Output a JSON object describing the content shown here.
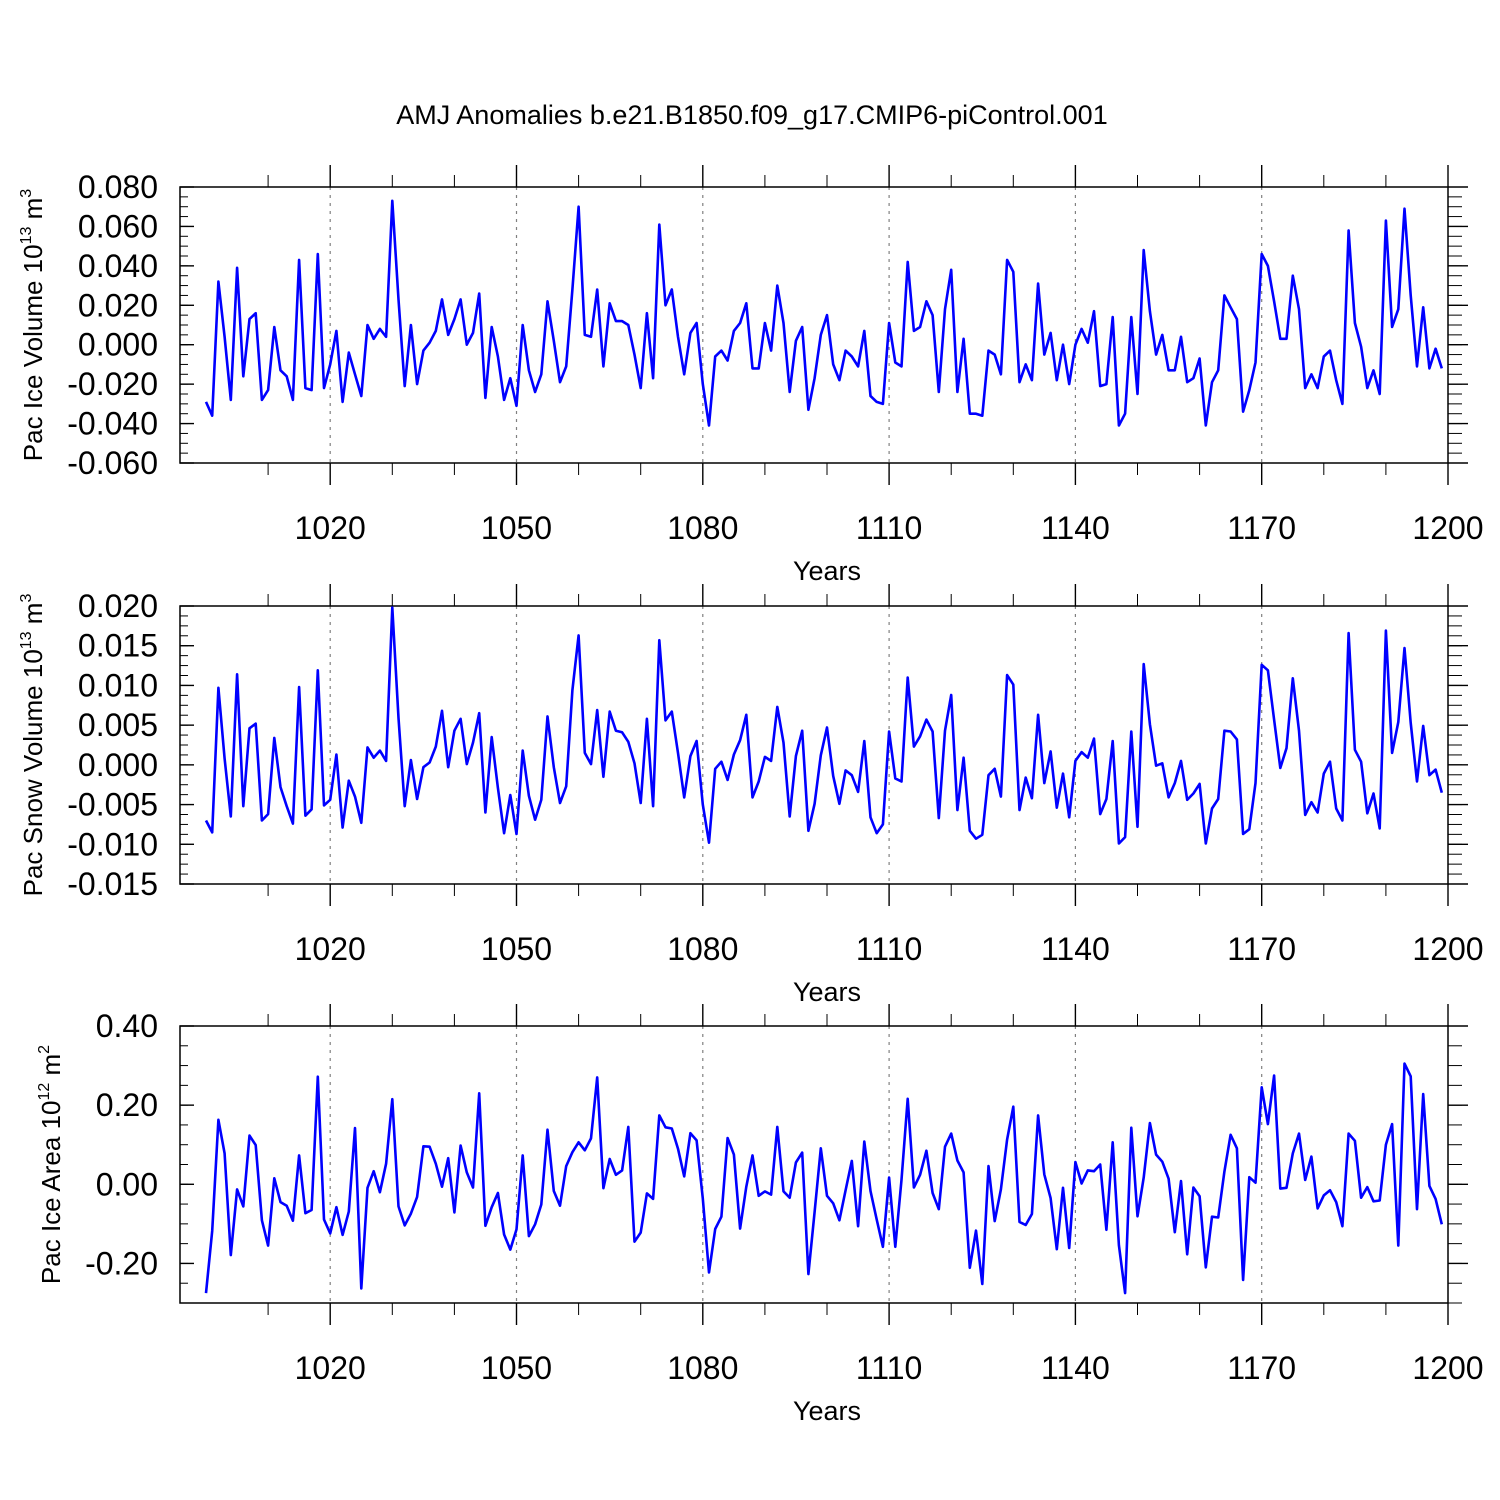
{
  "figure_title": "AMJ Anomalies b.e21.B1850.f09_g17.CMIP6-piControl.001",
  "colors": {
    "line": "#0000ff",
    "axis": "#000000",
    "grid": "#808080"
  },
  "chart_data": [
    {
      "type": "line",
      "title": "",
      "xlabel": "Years",
      "ylabel": {
        "text": "Pac Ice Volume 10",
        "sup": "13",
        "unit": " m",
        "unit_sup": "3"
      },
      "xlim": [
        1000,
        1200
      ],
      "ylim": [
        -0.06,
        0.08
      ],
      "xticks": [
        1020,
        1050,
        1080,
        1110,
        1140,
        1170,
        1200
      ],
      "xtick_labels": [
        "1020",
        "1050",
        "1080",
        "1110",
        "1140",
        "1170",
        "1200"
      ],
      "yticks": [
        -0.06,
        -0.04,
        -0.02,
        0.0,
        0.02,
        0.04,
        0.06,
        0.08
      ],
      "ytick_labels": [
        "-0.060",
        "-0.040",
        "-0.020",
        "0.000",
        "0.020",
        "0.040",
        "0.060",
        "0.080"
      ],
      "x_start": 1000,
      "series": [
        {
          "name": "Pac Ice Volume",
          "values": [
            -0.029,
            -0.036,
            0.032,
            0.004,
            -0.028,
            0.039,
            -0.016,
            0.013,
            0.016,
            -0.028,
            -0.023,
            0.009,
            -0.013,
            -0.016,
            -0.028,
            0.043,
            -0.022,
            -0.023,
            0.046,
            -0.022,
            -0.01,
            0.007,
            -0.029,
            -0.004,
            -0.015,
            -0.026,
            0.01,
            0.003,
            0.008,
            0.004,
            0.073,
            0.023,
            -0.021,
            0.01,
            -0.02,
            -0.003,
            0.001,
            0.007,
            0.023,
            0.005,
            0.013,
            0.023,
            0.0,
            0.006,
            0.026,
            -0.027,
            0.009,
            -0.006,
            -0.028,
            -0.017,
            -0.031,
            0.01,
            -0.013,
            -0.024,
            -0.015,
            0.022,
            0.002,
            -0.019,
            -0.011,
            0.028,
            0.07,
            0.005,
            0.004,
            0.028,
            -0.011,
            0.021,
            0.012,
            0.012,
            0.01,
            -0.005,
            -0.022,
            0.016,
            -0.017,
            0.061,
            0.02,
            0.028,
            0.004,
            -0.015,
            0.006,
            0.011,
            -0.02,
            -0.041,
            -0.006,
            -0.003,
            -0.008,
            0.007,
            0.011,
            0.021,
            -0.012,
            -0.012,
            0.011,
            -0.003,
            0.03,
            0.011,
            -0.024,
            0.002,
            0.009,
            -0.033,
            -0.017,
            0.005,
            0.015,
            -0.01,
            -0.018,
            -0.003,
            -0.006,
            -0.011,
            0.007,
            -0.026,
            -0.029,
            -0.03,
            0.011,
            -0.009,
            -0.011,
            0.042,
            0.007,
            0.009,
            0.022,
            0.015,
            -0.024,
            0.018,
            0.038,
            -0.024,
            0.003,
            -0.035,
            -0.035,
            -0.036,
            -0.003,
            -0.005,
            -0.015,
            0.043,
            0.037,
            -0.019,
            -0.01,
            -0.018,
            0.031,
            -0.005,
            0.006,
            -0.018,
            0.0,
            -0.02,
            0.0,
            0.008,
            0.001,
            0.017,
            -0.021,
            -0.02,
            0.014,
            -0.041,
            -0.035,
            0.014,
            -0.025,
            0.048,
            0.017,
            -0.005,
            0.005,
            -0.013,
            -0.013,
            0.004,
            -0.019,
            -0.017,
            -0.007,
            -0.041,
            -0.019,
            -0.013,
            0.025,
            0.019,
            0.013,
            -0.034,
            -0.023,
            -0.009,
            0.046,
            0.04,
            0.022,
            0.003,
            0.003,
            0.035,
            0.018,
            -0.022,
            -0.015,
            -0.022,
            -0.006,
            -0.003,
            -0.018,
            -0.03,
            0.058,
            0.011,
            -0.001,
            -0.022,
            -0.013,
            -0.025,
            0.063,
            0.009,
            0.018,
            0.069,
            0.025,
            -0.011,
            0.019,
            -0.012,
            -0.002,
            -0.012
          ]
        }
      ]
    },
    {
      "type": "line",
      "title": "",
      "xlabel": "Years",
      "ylabel": {
        "text": "Pac Snow Volume 10",
        "sup": "13",
        "unit": " m",
        "unit_sup": "3"
      },
      "xlim": [
        1000,
        1200
      ],
      "ylim": [
        -0.015,
        0.02
      ],
      "xticks": [
        1020,
        1050,
        1080,
        1110,
        1140,
        1170,
        1200
      ],
      "xtick_labels": [
        "1020",
        "1050",
        "1080",
        "1110",
        "1140",
        "1170",
        "1200"
      ],
      "yticks": [
        -0.015,
        -0.01,
        -0.005,
        0.0,
        0.005,
        0.01,
        0.015,
        0.02
      ],
      "ytick_labels": [
        "-0.015",
        "-0.010",
        "-0.005",
        "0.000",
        "0.005",
        "0.010",
        "0.015",
        "0.020"
      ],
      "x_start": 1000,
      "series": [
        {
          "name": "Pac Snow Volume",
          "values": [
            -0.007,
            -0.0085,
            0.0097,
            0.0008,
            -0.0065,
            0.0114,
            -0.0052,
            0.0046,
            0.0052,
            -0.007,
            -0.0062,
            0.0034,
            -0.0028,
            -0.0052,
            -0.0074,
            0.0098,
            -0.0064,
            -0.0056,
            0.0119,
            -0.0051,
            -0.0044,
            0.0013,
            -0.0079,
            -0.002,
            -0.004,
            -0.0073,
            0.0022,
            0.0009,
            0.0018,
            0.0005,
            0.0198,
            0.0059,
            -0.0052,
            0.0006,
            -0.0043,
            -0.0003,
            0.0003,
            0.0023,
            0.0068,
            -0.0003,
            0.0043,
            0.0058,
            0.0001,
            0.0028,
            0.0065,
            -0.006,
            0.0035,
            -0.0029,
            -0.0086,
            -0.0038,
            -0.0087,
            0.0018,
            -0.0039,
            -0.0069,
            -0.0044,
            0.0061,
            -0.0003,
            -0.0048,
            -0.0027,
            0.0094,
            0.0163,
            0.0015,
            0.0001,
            0.0069,
            -0.0015,
            0.0067,
            0.0043,
            0.0041,
            0.0029,
            0.0002,
            -0.0048,
            0.0058,
            -0.0052,
            0.0157,
            0.0056,
            0.0067,
            0.0015,
            -0.0041,
            0.0011,
            0.003,
            -0.005,
            -0.0098,
            -0.0005,
            0.0004,
            -0.0019,
            0.0013,
            0.0031,
            0.0063,
            -0.0041,
            -0.0021,
            0.001,
            0.0005,
            0.0073,
            0.0028,
            -0.0065,
            0.0011,
            0.0043,
            -0.0083,
            -0.0049,
            0.0012,
            0.0047,
            -0.0014,
            -0.0049,
            -0.0007,
            -0.0013,
            -0.0034,
            0.003,
            -0.0066,
            -0.0086,
            -0.0075,
            0.0042,
            -0.0017,
            -0.0021,
            0.011,
            0.0023,
            0.0036,
            0.0057,
            0.0042,
            -0.0067,
            0.0043,
            0.0088,
            -0.0057,
            0.0009,
            -0.0083,
            -0.0093,
            -0.0088,
            -0.0013,
            -0.0005,
            -0.004,
            0.0113,
            0.0101,
            -0.0057,
            -0.0016,
            -0.0042,
            0.0063,
            -0.0023,
            0.0017,
            -0.0054,
            -0.0011,
            -0.0066,
            0.0005,
            0.0016,
            0.0009,
            0.0033,
            -0.0062,
            -0.0043,
            0.003,
            -0.0099,
            -0.0091,
            0.0042,
            -0.0078,
            0.0127,
            0.0051,
            -0.0001,
            0.0002,
            -0.0041,
            -0.0023,
            0.0005,
            -0.0044,
            -0.0036,
            -0.0024,
            -0.0099,
            -0.0055,
            -0.0043,
            0.0043,
            0.0042,
            0.0032,
            -0.0087,
            -0.0081,
            -0.0023,
            0.0126,
            0.0119,
            0.0057,
            -0.0004,
            0.0021,
            0.0109,
            0.0043,
            -0.0063,
            -0.0047,
            -0.006,
            -0.0011,
            0.0004,
            -0.0055,
            -0.007,
            0.0166,
            0.0019,
            0.0004,
            -0.0061,
            -0.0036,
            -0.008,
            0.0169,
            0.0015,
            0.0054,
            0.0147,
            0.0053,
            -0.0021,
            0.0049,
            -0.0013,
            -0.0006,
            -0.0035
          ]
        }
      ]
    },
    {
      "type": "line",
      "title": "",
      "xlabel": "Years",
      "ylabel": {
        "text": "Pac Ice Area 10",
        "sup": "12",
        "unit": " m",
        "unit_sup": "2"
      },
      "xlim": [
        1000,
        1200
      ],
      "ylim": [
        -0.3,
        0.4
      ],
      "xticks": [
        1020,
        1050,
        1080,
        1110,
        1140,
        1170,
        1200
      ],
      "xtick_labels": [
        "1020",
        "1050",
        "1080",
        "1110",
        "1140",
        "1170",
        "1200"
      ],
      "yticks": [
        -0.2,
        0.0,
        0.2,
        0.4
      ],
      "ytick_labels": [
        "-0.20",
        "0.00",
        "0.20",
        "0.40"
      ],
      "x_start": 1000,
      "series": [
        {
          "name": "Pac Ice Area",
          "values": [
            -0.275,
            -0.118,
            0.163,
            0.078,
            -0.179,
            -0.013,
            -0.056,
            0.123,
            0.099,
            -0.091,
            -0.155,
            0.015,
            -0.045,
            -0.054,
            -0.092,
            0.073,
            -0.073,
            -0.065,
            0.272,
            -0.089,
            -0.124,
            -0.058,
            -0.128,
            -0.069,
            0.142,
            -0.263,
            -0.009,
            0.033,
            -0.02,
            0.052,
            0.215,
            -0.056,
            -0.104,
            -0.074,
            -0.032,
            0.096,
            0.095,
            0.052,
            -0.006,
            0.066,
            -0.071,
            0.098,
            0.03,
            -0.008,
            0.23,
            -0.105,
            -0.058,
            -0.022,
            -0.127,
            -0.165,
            -0.114,
            0.073,
            -0.131,
            -0.101,
            -0.051,
            0.138,
            -0.017,
            -0.054,
            0.046,
            0.081,
            0.106,
            0.086,
            0.116,
            0.27,
            -0.01,
            0.064,
            0.024,
            0.035,
            0.145,
            -0.145,
            -0.122,
            -0.023,
            -0.037,
            0.174,
            0.144,
            0.141,
            0.09,
            0.02,
            0.129,
            0.111,
            -0.036,
            -0.223,
            -0.113,
            -0.082,
            0.117,
            0.075,
            -0.112,
            -0.006,
            0.073,
            -0.029,
            -0.018,
            -0.026,
            0.145,
            -0.018,
            -0.034,
            0.055,
            0.08,
            -0.227,
            -0.07,
            0.091,
            -0.029,
            -0.048,
            -0.091,
            -0.015,
            0.059,
            -0.106,
            0.108,
            -0.017,
            -0.089,
            -0.158,
            0.017,
            -0.158,
            0.011,
            0.216,
            -0.008,
            0.024,
            0.085,
            -0.022,
            -0.063,
            0.095,
            0.128,
            0.06,
            0.03,
            -0.211,
            -0.117,
            -0.252,
            0.046,
            -0.093,
            -0.013,
            0.113,
            0.196,
            -0.095,
            -0.103,
            -0.075,
            0.174,
            0.025,
            -0.035,
            -0.164,
            -0.009,
            -0.161,
            0.056,
            0.002,
            0.035,
            0.033,
            0.05,
            -0.115,
            0.106,
            -0.154,
            -0.275,
            0.143,
            -0.081,
            0.017,
            0.155,
            0.075,
            0.057,
            0.014,
            -0.121,
            0.008,
            -0.177,
            -0.008,
            -0.03,
            -0.21,
            -0.082,
            -0.084,
            0.032,
            0.125,
            0.091,
            -0.242,
            0.018,
            0.004,
            0.245,
            0.152,
            0.275,
            -0.011,
            -0.009,
            0.078,
            0.128,
            0.011,
            0.07,
            -0.061,
            -0.028,
            -0.015,
            -0.045,
            -0.106,
            0.128,
            0.11,
            -0.034,
            -0.007,
            -0.043,
            -0.041,
            0.1,
            0.152,
            -0.155,
            0.305,
            0.273,
            -0.063,
            0.228,
            -0.004,
            -0.037,
            -0.101
          ]
        }
      ]
    }
  ]
}
